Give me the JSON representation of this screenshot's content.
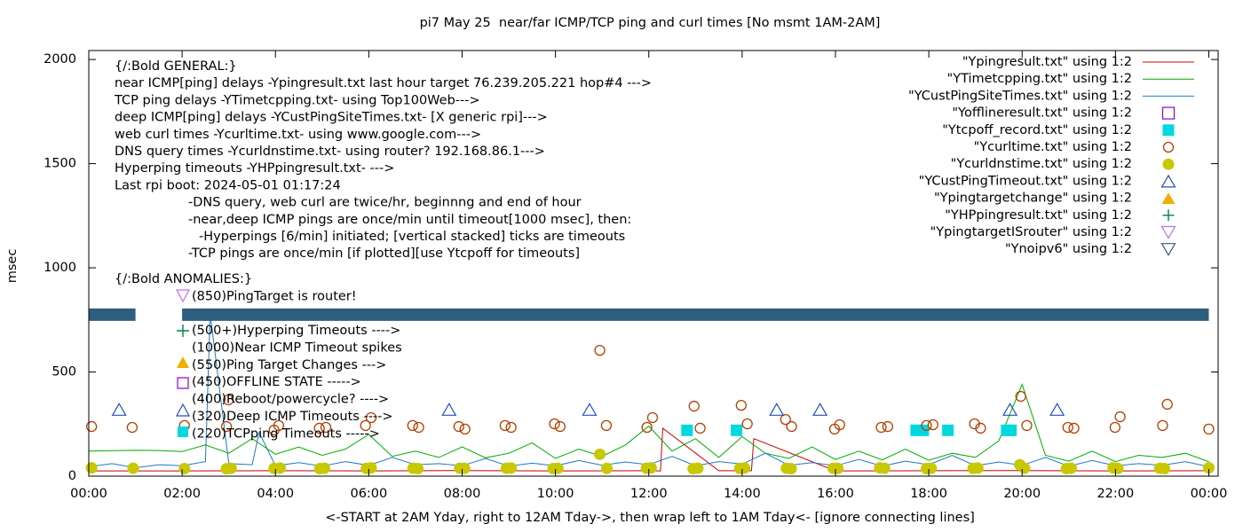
{
  "chart_data": {
    "type": "line",
    "title": "pi7 May 25  near/far ICMP/TCP ping and curl times [No msmt 1AM-2AM]",
    "x_label": "<-START at 2AM Yday, right to 12AM Tday->, then wrap left to 1AM Tday<- [ignore connecting lines]",
    "y_label": "msec",
    "xlim": [
      0,
      24.2
    ],
    "ylim": [
      0,
      2043
    ],
    "xticks": [
      {
        "value": 0,
        "label": "00:00"
      },
      {
        "value": 2,
        "label": "02:00"
      },
      {
        "value": 4,
        "label": "04:00"
      },
      {
        "value": 6,
        "label": "06:00"
      },
      {
        "value": 8,
        "label": "08:00"
      },
      {
        "value": 10,
        "label": "10:00"
      },
      {
        "value": 12,
        "label": "12:00"
      },
      {
        "value": 14,
        "label": "14:00"
      },
      {
        "value": 16,
        "label": "16:00"
      },
      {
        "value": 18,
        "label": "18:00"
      },
      {
        "value": 20,
        "label": "20:00"
      },
      {
        "value": 22,
        "label": "22:00"
      },
      {
        "value": 24,
        "label": "00:00"
      }
    ],
    "yticks": [
      0,
      500,
      1000,
      1500,
      2000
    ],
    "grid": false,
    "legend": "top-right",
    "annotations": [
      "{/:Bold GENERAL:}",
      "near ICMP[ping] delays -Ypingresult.txt last hour target 76.239.205.221 hop#4 --->",
      "TCP ping delays -YTimetcpping.txt- using Top100Web--->",
      "deep ICMP[ping] delays -YCustPingSiteTimes.txt- [X generic rpi]--->",
      "web curl times -Ycurltime.txt- using www.google.com--->",
      "DNS query times -Ycurldnstime.txt- using router? 192.168.86.1--->",
      "Hyperping timeouts -YHPpingresult.txt- --->",
      "Last rpi boot: 2024-05-01 01:17:24",
      "-DNS query, web curl are twice/hr, beginnng and end of hour",
      "-near,deep ICMP pings are once/min until timeout[1000 msec], then:",
      "-Hyperpings [6/min] initiated; [vertical stacked] ticks are timeouts",
      "-TCP pings are once/min [if plotted][use Ytcpoff for timeouts]",
      "{/:Bold ANOMALIES:}",
      "(850)PingTarget is router!",
      "(500+)Hyperping Timeouts ---->",
      "(1000)Near ICMP Timeout spikes",
      "(550)Ping Target Changes --->",
      "(450)OFFLINE STATE ----->",
      "(400)Reboot/powercycle? ---->",
      "(320)Deep ICMP Timeouts ---->",
      "(220)TCPping Timeouts ----->"
    ],
    "series": [
      {
        "name": "\"Ypingresult.txt\" using 1:2",
        "color": "#cc0000",
        "style": "lines",
        "x": [
          0,
          2,
          4,
          6,
          8,
          10,
          12,
          12.25,
          12.3,
          13.5,
          14.2,
          14.25,
          16,
          18,
          20,
          22,
          24
        ],
        "values": [
          25,
          25,
          26,
          25,
          27,
          25,
          26,
          25,
          230,
          26,
          26,
          180,
          25,
          26,
          27,
          25,
          26
        ]
      },
      {
        "name": "\"YTimetcpping.txt\" using 1:2",
        "color": "#00aa00",
        "style": "lines",
        "x": [
          0,
          0.5,
          1,
          1.5,
          2,
          2.5,
          3,
          3.5,
          4,
          4.5,
          5,
          5.5,
          6,
          6.5,
          7,
          7.5,
          8,
          8.5,
          9,
          9.5,
          10,
          10.5,
          11,
          11.5,
          12,
          12.5,
          13,
          13.5,
          14,
          14.5,
          15,
          15.5,
          16,
          16.5,
          17,
          17.5,
          18,
          18.5,
          19,
          19.5,
          20,
          20.5,
          21,
          21.5,
          22,
          22.5,
          23,
          23.5,
          24
        ],
        "values": [
          120,
          122,
          124,
          123,
          118,
          150,
          110,
          180,
          105,
          140,
          100,
          130,
          200,
          95,
          120,
          90,
          140,
          88,
          110,
          160,
          85,
          130,
          95,
          150,
          240,
          120,
          180,
          90,
          190,
          110,
          85,
          140,
          80,
          120,
          78,
          130,
          76,
          110,
          90,
          170,
          440,
          100,
          72,
          120,
          70,
          100,
          90,
          110,
          70
        ]
      },
      {
        "name": "\"YCustPingSiteTimes.txt\" using 1:2",
        "color": "#1f78c8",
        "style": "lines",
        "x": [
          0,
          0.5,
          1,
          1.5,
          2,
          2.5,
          2.6,
          3,
          3.5,
          3.65,
          4,
          4.5,
          5,
          5.5,
          6,
          6.5,
          7,
          7.5,
          8,
          8.5,
          9,
          9.5,
          10,
          10.5,
          11,
          11.5,
          12,
          12.5,
          13,
          13.5,
          14,
          14.5,
          15,
          15.5,
          16,
          16.5,
          17,
          17.5,
          18,
          18.5,
          19,
          19.5,
          20,
          20.5,
          21,
          21.5,
          22,
          22.5,
          23,
          23.5,
          24
        ],
        "values": [
          45,
          60,
          40,
          55,
          50,
          70,
          780,
          60,
          55,
          210,
          50,
          65,
          48,
          70,
          52,
          90,
          55,
          60,
          50,
          85,
          48,
          62,
          50,
          75,
          52,
          68,
          55,
          95,
          50,
          70,
          58,
          110,
          52,
          65,
          50,
          80,
          48,
          72,
          55,
          100,
          50,
          68,
          52,
          90,
          48,
          75,
          50,
          60,
          52,
          70,
          45
        ]
      },
      {
        "name": "\"Yofflineresult.txt\" using 1:2",
        "color": "#9400d3",
        "style": "points",
        "marker": "square-open",
        "x": [],
        "values": []
      },
      {
        "name": "\"Ytcpoff_record.txt\" using 1:2",
        "color": "#00d8e0",
        "style": "points",
        "marker": "square",
        "x": [
          12.82,
          13.88,
          17.73,
          17.88,
          18.41,
          19.67,
          19.76
        ],
        "values": [
          220,
          220,
          220,
          220,
          220,
          220,
          220
        ]
      },
      {
        "name": "\"Ycurltime.txt\" using 1:2",
        "color": "#b34000",
        "style": "points",
        "marker": "circle-open",
        "x": [
          0.06,
          0.93,
          2.05,
          2.95,
          2.99,
          3.97,
          4.07,
          4.94,
          5.08,
          5.93,
          6.05,
          6.94,
          7.07,
          7.93,
          8.06,
          8.92,
          9.05,
          9.98,
          10.1,
          10.95,
          11.09,
          11.96,
          12.08,
          12.97,
          13.1,
          13.98,
          14.11,
          14.93,
          15.06,
          15.98,
          16.09,
          16.98,
          17.12,
          17.95,
          18.09,
          18.98,
          19.11,
          19.97,
          20.1,
          20.98,
          21.11,
          21.99,
          22.1,
          23.01,
          23.11,
          24.0
        ],
        "values": [
          238,
          234,
          243,
          238,
          366,
          221,
          243,
          230,
          234,
          243,
          281,
          243,
          234,
          238,
          226,
          243,
          234,
          251,
          238,
          604,
          243,
          234,
          281,
          336,
          230,
          340,
          251,
          272,
          238,
          226,
          247,
          234,
          238,
          243,
          247,
          251,
          230,
          383,
          243,
          234,
          230,
          234,
          285,
          243,
          345,
          226
        ]
      },
      {
        "name": "\"Ycurldnstime.txt\" using 1:2",
        "color": "#c8c800",
        "style": "points",
        "marker": "circle",
        "x": [
          0.06,
          0.95,
          2.05,
          2.95,
          3.05,
          3.97,
          4.1,
          4.95,
          5.05,
          5.95,
          6.05,
          6.95,
          7.05,
          7.95,
          8.05,
          8.95,
          9.05,
          9.95,
          10.05,
          10.95,
          11.1,
          11.95,
          12.05,
          12.95,
          13.05,
          13.95,
          14.05,
          14.95,
          15.05,
          15.95,
          16.05,
          16.95,
          17.05,
          17.95,
          18.05,
          18.95,
          19.05,
          19.95,
          20.05,
          20.95,
          21.05,
          21.95,
          22.05,
          22.95,
          23.05,
          24
        ],
        "values": [
          40,
          38,
          36,
          35,
          38,
          37,
          39,
          36,
          38,
          37,
          40,
          38,
          36,
          38,
          37,
          38,
          39,
          36,
          38,
          105,
          37,
          38,
          40,
          36,
          38,
          37,
          39,
          38,
          36,
          38,
          37,
          40,
          38,
          36,
          38,
          37,
          39,
          55,
          38,
          36,
          38,
          40,
          37,
          38,
          36,
          40
        ]
      },
      {
        "name": "\"YCustPingTimeout.txt\" using 1:2",
        "color": "#2050c0",
        "style": "points",
        "marker": "tri-up-open",
        "x": [
          0.65,
          7.72,
          10.73,
          14.74,
          15.67,
          19.74,
          20.75
        ],
        "values": [
          320,
          320,
          320,
          320,
          320,
          320,
          320
        ]
      },
      {
        "name": "\"Ypingtargetchange\" using 1:2",
        "color": "#f0b000",
        "style": "points",
        "marker": "tri-up",
        "x": [],
        "values": []
      },
      {
        "name": "\"YHPpingresult.txt\" using 1:2",
        "color": "#00804a",
        "style": "points",
        "marker": "plus",
        "x": [],
        "values": []
      },
      {
        "name": "\"YpingtargetISrouter\" using 1:2",
        "color": "#c070e0",
        "style": "points",
        "marker": "tri-down-open",
        "x": [],
        "values": []
      },
      {
        "name": "\"Ynoipv6\" using 1:2",
        "color": "#2e5f7f",
        "style": "band",
        "marker": "tri-down-open",
        "x": [
          0,
          1.0,
          1.5,
          2.0,
          24
        ],
        "values": [
          775,
          775,
          null,
          775,
          775
        ]
      }
    ]
  }
}
